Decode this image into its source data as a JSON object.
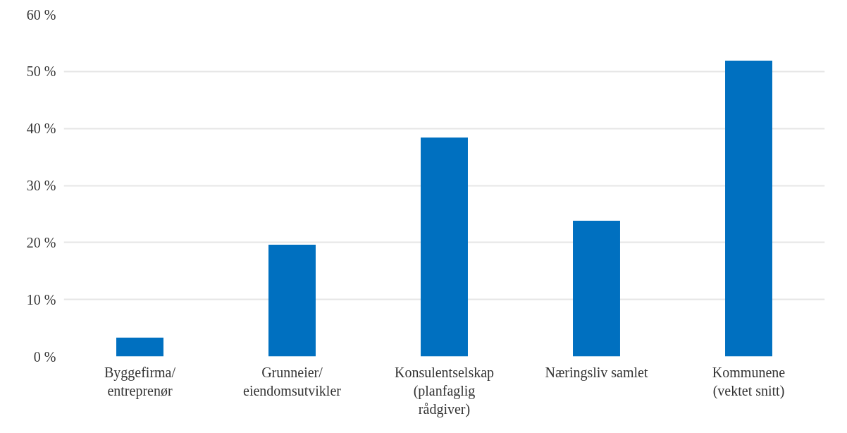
{
  "chart_data": {
    "type": "bar",
    "categories": [
      "Byggefirma/\nentreprenør",
      "Grunneier/\neiendomsutvikler",
      "Konsulentselskap\n(planfaglig\nrådgiver)",
      "Næringsliv samlet",
      "Kommunene\n(vektet snitt)"
    ],
    "values": [
      3.3,
      19.6,
      38.4,
      23.8,
      51.9
    ],
    "color": "#0070c0",
    "ylim": [
      0,
      60
    ],
    "yticks": [
      {
        "value": 0,
        "label": "0 %"
      },
      {
        "value": 10,
        "label": "10 %"
      },
      {
        "value": 20,
        "label": "20 %"
      },
      {
        "value": 30,
        "label": "30 %"
      },
      {
        "value": 40,
        "label": "40 %"
      },
      {
        "value": 50,
        "label": "50 %"
      },
      {
        "value": 60,
        "label": "60 %"
      }
    ],
    "grid": "y"
  }
}
